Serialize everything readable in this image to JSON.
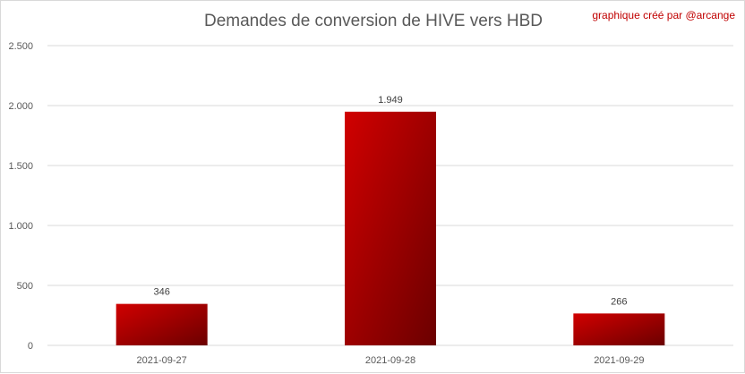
{
  "title": "Demandes de conversion de HIVE vers HBD",
  "credit": "graphique créé par @arcange",
  "colors": {
    "bar_light": "#d10000",
    "bar_dark": "#6b0000",
    "grid": "#d9d9d9"
  },
  "chart_data": {
    "type": "bar",
    "title": "Demandes de conversion de HIVE vers HBD",
    "categories": [
      "2021-09-27",
      "2021-09-28",
      "2021-09-29"
    ],
    "values": [
      346,
      1949,
      266
    ],
    "value_labels": [
      "346",
      "1.949",
      "266"
    ],
    "ylim": [
      0,
      2500
    ],
    "yticks": [
      0,
      500,
      1000,
      1500,
      2000,
      2500
    ],
    "ytick_labels": [
      "0",
      "500",
      "1.000",
      "1.500",
      "2.000",
      "2.500"
    ],
    "grid": true,
    "legend": "none"
  }
}
